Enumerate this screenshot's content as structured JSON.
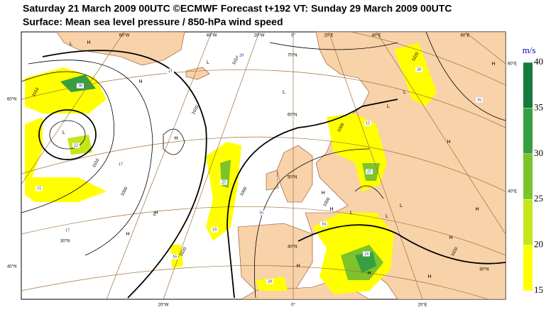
{
  "header": {
    "title": "Saturday 21 March 2009 00UTC ©ECMWF Forecast t+192 VT: Sunday 29 March 2009 00UTC",
    "subtitle": "Surface: Mean sea level pressure / 850-hPa wind speed"
  },
  "map": {
    "longitude_labels": [
      "60°W",
      "40°W",
      "20°W",
      "0°",
      "20°E",
      "40°E",
      "60°E",
      "20°W",
      "0°",
      "20°E"
    ],
    "latitude_labels": [
      "60°N",
      "40°N",
      "60°E",
      "40°E",
      "70°N",
      "60°N",
      "50°N",
      "40°N",
      "30°N",
      "30°N"
    ],
    "isobar_labels": [
      "1010",
      "1010",
      "1000",
      "1020",
      "1010",
      "1000",
      "1000",
      "1000",
      "1020",
      "1020",
      "1020"
    ],
    "wind_labels": [
      "30",
      "22",
      "17",
      "15",
      "17",
      "20",
      "21",
      "25",
      "19",
      "16",
      "16",
      "20",
      "16",
      "15",
      "25",
      "16",
      "24",
      "20"
    ],
    "pressure_centers": [
      "H",
      "H",
      "H",
      "H",
      "H",
      "H",
      "H",
      "H",
      "H",
      "H",
      "H",
      "H",
      "H",
      "H",
      "L",
      "L",
      "L",
      "L",
      "L",
      "L",
      "L",
      "L",
      "L",
      "L"
    ]
  },
  "legend": {
    "unit": "m/s",
    "ticks": [
      15,
      20,
      25,
      30,
      35,
      40
    ],
    "colors": [
      "#ffff00",
      "#c4e61a",
      "#7cc42a",
      "#36a040",
      "#157a3c"
    ]
  }
}
